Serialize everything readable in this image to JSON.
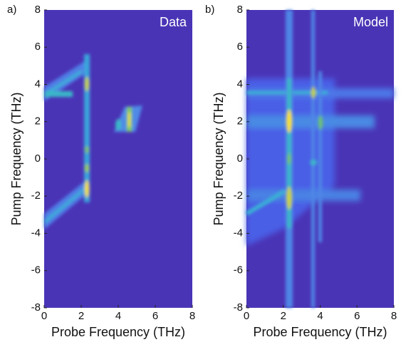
{
  "chart_data": [
    {
      "type": "heatmap",
      "panel_label": "a)",
      "title": "Data",
      "xlabel": "Probe Frequency (THz)",
      "ylabel": "Pump Frequency (THz)",
      "xlim": [
        0,
        8
      ],
      "ylim": [
        -8,
        8
      ],
      "xticks": [
        0,
        2,
        4,
        6,
        8
      ],
      "yticks": [
        -8,
        -6,
        -4,
        -2,
        0,
        2,
        4,
        6,
        8
      ]
    },
    {
      "type": "heatmap",
      "panel_label": "b)",
      "title": "Model",
      "xlabel": "Probe Frequency (THz)",
      "ylabel": "Pump Frequency (THz)",
      "xlim": [
        0,
        8
      ],
      "ylim": [
        -8,
        8
      ],
      "xticks": [
        0,
        2,
        4,
        6,
        8
      ],
      "yticks": [
        -8,
        -6,
        -4,
        -2,
        0,
        2,
        4,
        6,
        8
      ]
    }
  ]
}
